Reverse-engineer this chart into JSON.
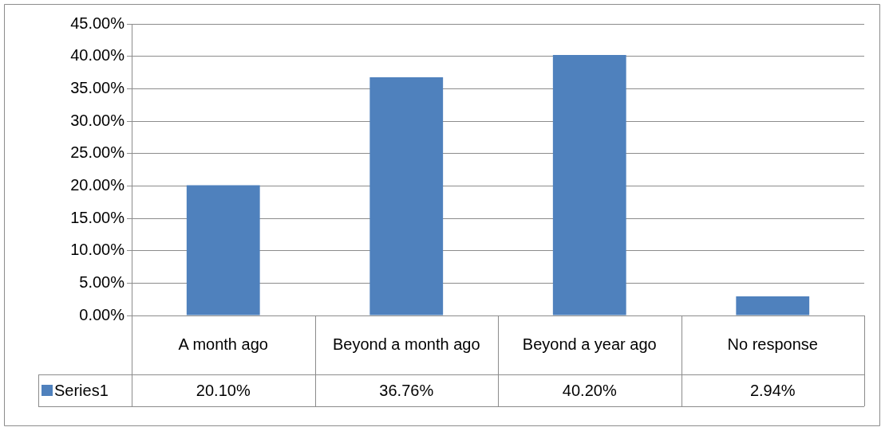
{
  "chart_data": {
    "type": "bar",
    "categories": [
      "A month ago",
      "Beyond a month ago",
      "Beyond a year ago",
      "No response"
    ],
    "series": [
      {
        "name": "Series1",
        "color": "#4f81bd",
        "values": [
          20.1,
          36.76,
          40.2,
          2.94
        ],
        "value_labels": [
          "20.10%",
          "36.76%",
          "40.20%",
          "2.94%"
        ]
      }
    ],
    "ylim": [
      0,
      45
    ],
    "yticks": [
      {
        "value": 0,
        "label": "0.00%"
      },
      {
        "value": 5,
        "label": "5.00%"
      },
      {
        "value": 10,
        "label": "10.00%"
      },
      {
        "value": 15,
        "label": "15.00%"
      },
      {
        "value": 20,
        "label": "20.00%"
      },
      {
        "value": 25,
        "label": "25.00%"
      },
      {
        "value": 30,
        "label": "30.00%"
      },
      {
        "value": 35,
        "label": "35.00%"
      },
      {
        "value": 40,
        "label": "40.00%"
      },
      {
        "value": 45,
        "label": "45.00%"
      }
    ],
    "grid": "y",
    "legend": "bottom"
  }
}
